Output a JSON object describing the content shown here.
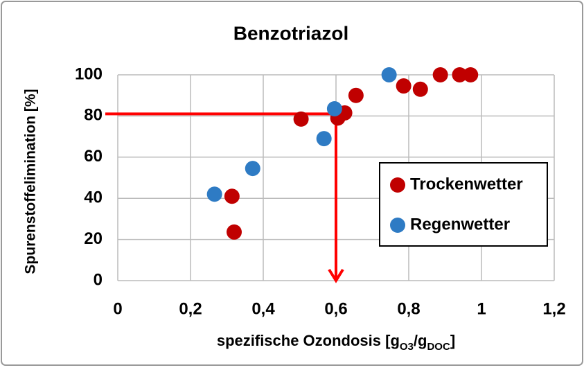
{
  "chart_data": {
    "type": "scatter",
    "title": "Benzotriazol",
    "xlabel": [
      "spezifische Ozondosis [g",
      "O3",
      "/g",
      "DOC",
      "]"
    ],
    "ylabel": "Spurenstoffelimination [%]",
    "xlim": [
      0,
      1.2
    ],
    "ylim": [
      0,
      100
    ],
    "xticks": [
      0,
      {
        "value": 0.2,
        "label": "0,2"
      },
      {
        "value": 0.4,
        "label": "0,4"
      },
      {
        "value": 0.6,
        "label": "0,6"
      },
      {
        "value": 0.8,
        "label": "0,8"
      },
      1,
      {
        "value": 1.2,
        "label": "1,2"
      }
    ],
    "yticks": [
      0,
      20,
      40,
      60,
      80,
      100
    ],
    "grid": true,
    "legend": "right",
    "series": [
      {
        "name": "Trockenwetter",
        "color": "#c00000",
        "x": [
          0.314,
          0.32,
          0.504,
          0.605,
          0.624,
          0.655,
          0.786,
          0.832,
          0.887,
          0.94,
          0.97
        ],
        "values": [
          41,
          23.6,
          78.5,
          79,
          81.5,
          90,
          94.6,
          93,
          100,
          100,
          100
        ]
      },
      {
        "name": "Regenwetter",
        "color": "#2e7bc4",
        "x": [
          0.266,
          0.371,
          0.567,
          0.596,
          0.746
        ],
        "values": [
          42,
          54.5,
          69,
          83.5,
          100
        ]
      }
    ],
    "reference": {
      "x": 0.6,
      "y": 81,
      "color": "#ff0000"
    }
  }
}
